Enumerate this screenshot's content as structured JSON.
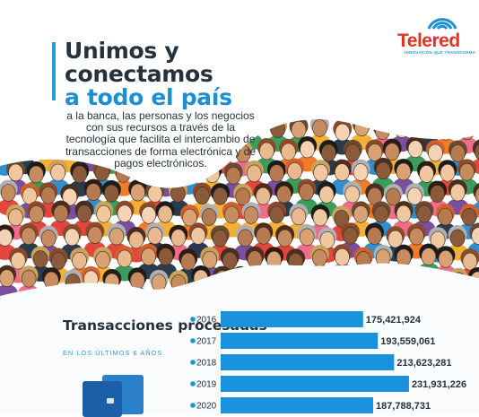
{
  "headline": {
    "line1": "Unimos y",
    "line2": "conectamos",
    "line3": "a todo el país"
  },
  "description": "a la banca, las personas y los negocios con sus recursos a través de la tecnología que facilita el intercambio de transacciones de forma electrónica y de pagos electrónicos.",
  "logo": {
    "name": "Telered",
    "tagline": "INNOVACIÓN QUE TRANSFORMA",
    "icon": "wifi-signal-icon"
  },
  "colors": {
    "accent": "#1b8fd2",
    "bar": "#1a91dc",
    "title": "#25323b",
    "brand": "#e63226"
  },
  "chart_data": {
    "type": "bar",
    "orientation": "horizontal",
    "title": "Transacciones procesadas",
    "subtitle": "EN LOS ÚLTIMOS 6 AÑOS",
    "categories": [
      "2016",
      "2017",
      "2018",
      "2019",
      "2020"
    ],
    "values": [
      175421924,
      193559061,
      213623281,
      231931226,
      187788731
    ],
    "value_labels": [
      "175,421,924",
      "193,559,061",
      "213,623,281",
      "231,931,226",
      "187,788,731"
    ],
    "xlim": [
      0,
      232000000
    ]
  }
}
